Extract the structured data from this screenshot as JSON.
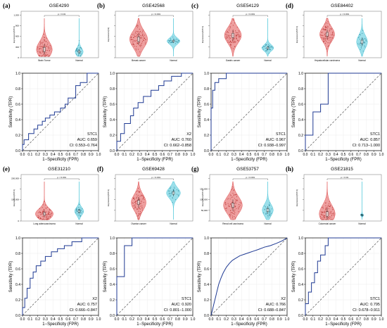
{
  "figure": {
    "panels": [
      {
        "tag": "(a)",
        "gse": "GSE4290",
        "violin": {
          "ylabel": "Expression(STC1)",
          "yticks": [
            "0",
            "300",
            "600",
            "900",
            "1,200"
          ],
          "groups": [
            "Brain Tumor",
            "Normal"
          ],
          "p": "p < 0.01",
          "colors": [
            "#e05050",
            "#49c5d8"
          ]
        },
        "roc": {
          "label": "STC1",
          "auc": "AUC: 0.659",
          "ci": "CI: 0.553−0.764"
        }
      },
      {
        "tag": "(b)",
        "gse": "GSE42568",
        "violin": {
          "ylabel": "Expression(X2)",
          "yticks": [
            "",
            "",
            "",
            "",
            ""
          ],
          "groups": [
            "Breast cancer",
            "Normal"
          ],
          "p": "p < 0.001",
          "colors": [
            "#e05050",
            "#49c5d8"
          ]
        },
        "roc": {
          "label": "X2",
          "auc": "AUC: 0.760",
          "ci": "CI: 0.662−0.858"
        }
      },
      {
        "tag": "(c)",
        "gse": "GSE54129",
        "violin": {
          "ylabel": "Expression(STC1)",
          "yticks": [
            "",
            "",
            "",
            "",
            ""
          ],
          "groups": [
            "Gastric cancer",
            "Normal"
          ],
          "p": "p < 0.001",
          "colors": [
            "#e05050",
            "#49c5d8"
          ]
        },
        "roc": {
          "label": "STC1",
          "auc": "AUC: 0.967",
          "ci": "CI: 0.938−0.997"
        }
      },
      {
        "tag": "(d)",
        "gse": "GSE84402",
        "violin": {
          "ylabel": "Expression(STC1)",
          "yticks": [
            "",
            "",
            "",
            "",
            ""
          ],
          "groups": [
            "Hepatocellular carcinoma",
            "Normal"
          ],
          "p": "p < 0.001",
          "colors": [
            "#e05050",
            "#49c5d8"
          ]
        },
        "roc": {
          "label": "STC1",
          "auc": "AUC: 0.857",
          "ci": "CI: 0.713−1.000"
        }
      },
      {
        "tag": "(e)",
        "gse": "GSE31210",
        "violin": {
          "ylabel": "Expression(STC1)",
          "yticks": [
            "0",
            "",
            "100,000",
            "",
            "200,000"
          ],
          "groups": [
            "Lung adenocarcinoma",
            "Normal"
          ],
          "p": "p < 0.001",
          "colors": [
            "#e05050",
            "#49c5d8"
          ]
        },
        "roc": {
          "label": "X2",
          "auc": "AUC: 0.757",
          "ci": "CI: 0.666−0.847"
        }
      },
      {
        "tag": "(f)",
        "gse": "GSE69428",
        "violin": {
          "ylabel": "Expression(STC1)",
          "yticks": [
            "",
            "",
            "",
            "",
            ""
          ],
          "groups": [
            "Ovarian cancer",
            "Normal"
          ],
          "p": "p < 0.001",
          "colors": [
            "#e05050",
            "#49c5d8"
          ]
        },
        "roc": {
          "label": "STC1",
          "auc": "AUC: 0.920",
          "ci": "CI: 0.801−1.000"
        }
      },
      {
        "tag": "(g)",
        "gse": "GSE53757",
        "violin": {
          "ylabel": "Expression(STC1)",
          "yticks": [
            "",
            "50,000",
            "100,000",
            "150,000",
            ""
          ],
          "groups": [
            "Renal cell carcinoma",
            "Normal"
          ],
          "p": "p < 0.001",
          "colors": [
            "#e05050",
            "#49c5d8"
          ]
        },
        "roc": {
          "label": "X2",
          "auc": "AUC: 0.766",
          "ci": "CI: 0.688−0.847"
        }
      },
      {
        "tag": "(h)",
        "gse": "GSE21815",
        "violin": {
          "ylabel": "Expression(STC1)",
          "yticks": [
            "",
            "",
            "",
            "",
            ""
          ],
          "groups": [
            "Colorectal cancer",
            "Normal"
          ],
          "p": "p < 0.01",
          "colors": [
            "#e05050",
            "#49c5d8"
          ]
        },
        "roc": {
          "label": "STC1",
          "auc": "AUC: 0.795",
          "ci": "CI: 0.678−0.911"
        }
      }
    ]
  },
  "chart_data": [
    {
      "type": "line",
      "panel": "(a)",
      "xlabel": "1−Specificity (FPR)",
      "ylabel": "Sensitivity (TPR)",
      "xlim": [
        0,
        1
      ],
      "ylim": [
        0,
        1
      ],
      "xticks": [
        "0.0",
        "0.1",
        "0.2",
        "0.3",
        "0.4",
        "0.5",
        "0.6",
        "0.7",
        "0.8",
        "0.9",
        "1.0"
      ],
      "yticks": [
        "0.0",
        "0.2",
        "0.4",
        "0.6",
        "0.8",
        "1.0"
      ],
      "series": [
        {
          "name": "STC1",
          "x": [
            0,
            0,
            0.02,
            0.02,
            0.08,
            0.08,
            0.15,
            0.15,
            0.2,
            0.2,
            0.26,
            0.26,
            0.3,
            0.3,
            0.36,
            0.36,
            0.42,
            0.42,
            0.5,
            0.5,
            0.56,
            0.56,
            0.6,
            0.6,
            0.7,
            0.7,
            0.76,
            0.76,
            0.85,
            0.85,
            1
          ],
          "y": [
            0,
            0.08,
            0.08,
            0.14,
            0.14,
            0.22,
            0.22,
            0.28,
            0.28,
            0.33,
            0.33,
            0.38,
            0.38,
            0.42,
            0.42,
            0.46,
            0.46,
            0.5,
            0.5,
            0.55,
            0.55,
            0.6,
            0.6,
            0.68,
            0.68,
            0.84,
            0.84,
            0.88,
            0.88,
            1,
            1
          ]
        }
      ]
    },
    {
      "type": "line",
      "panel": "(b)",
      "xlabel": "1−Specificity (FPR)",
      "ylabel": "Sensitivity (TPR)",
      "xlim": [
        0,
        1
      ],
      "ylim": [
        0,
        1
      ],
      "xticks": [
        "0.0",
        "0.1",
        "0.2",
        "0.3",
        "0.4",
        "0.5",
        "0.6",
        "0.7",
        "0.8",
        "0.9",
        "1.0"
      ],
      "yticks": [
        "0.0",
        "0.2",
        "0.4",
        "0.6",
        "0.8",
        "1.0"
      ],
      "series": [
        {
          "name": "X2",
          "x": [
            0,
            0,
            0.05,
            0.05,
            0.1,
            0.1,
            0.18,
            0.18,
            0.22,
            0.22,
            0.28,
            0.28,
            0.35,
            0.35,
            0.45,
            0.45,
            0.55,
            0.55,
            0.62,
            0.62,
            0.72,
            0.72,
            0.85,
            0.85,
            1
          ],
          "y": [
            0,
            0.12,
            0.12,
            0.22,
            0.22,
            0.35,
            0.35,
            0.45,
            0.45,
            0.55,
            0.55,
            0.62,
            0.62,
            0.7,
            0.7,
            0.78,
            0.78,
            0.84,
            0.84,
            0.9,
            0.9,
            0.96,
            0.96,
            1,
            1
          ]
        }
      ]
    },
    {
      "type": "line",
      "panel": "(c)",
      "xlabel": "1−Specificity (FPR)",
      "ylabel": "Sensitivity (TPR)",
      "xlim": [
        0,
        1
      ],
      "ylim": [
        0,
        1
      ],
      "xticks": [
        "0.0",
        "0.1",
        "0.2",
        "0.3",
        "0.4",
        "0.5",
        "0.6",
        "0.7",
        "0.8",
        "0.9",
        "1.0"
      ],
      "yticks": [
        "0.0",
        "0.2",
        "0.4",
        "0.6",
        "0.8",
        "1.0"
      ],
      "series": [
        {
          "name": "STC1",
          "x": [
            0,
            0,
            0.02,
            0.02,
            0.05,
            0.05,
            0.1,
            0.1,
            0.2,
            0.2,
            1
          ],
          "y": [
            0,
            0.55,
            0.55,
            0.78,
            0.78,
            0.88,
            0.88,
            0.93,
            0.93,
            1,
            1
          ]
        }
      ]
    },
    {
      "type": "line",
      "panel": "(d)",
      "xlabel": "1−Specificity (FPR)",
      "ylabel": "Sensitivity (TPR)",
      "xlim": [
        0,
        1
      ],
      "ylim": [
        0,
        1
      ],
      "xticks": [
        "0.0",
        "0.1",
        "0.2",
        "0.3",
        "0.4",
        "0.5",
        "0.6",
        "0.7",
        "0.8",
        "0.9",
        "1.0"
      ],
      "yticks": [
        "0.0",
        "0.2",
        "0.4",
        "0.6",
        "0.8",
        "1.0"
      ],
      "series": [
        {
          "name": "STC1",
          "x": [
            0,
            0,
            0.1,
            0.1,
            0.2,
            0.2,
            0.3,
            0.3,
            1
          ],
          "y": [
            0,
            0.2,
            0.2,
            0.5,
            0.5,
            0.6,
            0.6,
            1,
            1
          ]
        }
      ]
    },
    {
      "type": "line",
      "panel": "(e)",
      "xlabel": "1−Specificity (FPR)",
      "ylabel": "Sensitivity (TPR)",
      "xlim": [
        0,
        1
      ],
      "ylim": [
        0,
        1
      ],
      "xticks": [
        "0.0",
        "0.1",
        "0.2",
        "0.3",
        "0.4",
        "0.5",
        "0.6",
        "0.7",
        "0.8",
        "0.9",
        "1.0"
      ],
      "yticks": [
        "0.0",
        "0.2",
        "0.4",
        "0.6",
        "0.8",
        "1.0"
      ],
      "series": [
        {
          "name": "X2",
          "x": [
            0,
            0,
            0.03,
            0.03,
            0.06,
            0.06,
            0.1,
            0.1,
            0.14,
            0.14,
            0.18,
            0.18,
            0.24,
            0.24,
            0.3,
            0.3,
            0.38,
            0.38,
            0.46,
            0.46,
            0.55,
            0.55,
            0.65,
            0.65,
            0.78,
            0.78,
            1
          ],
          "y": [
            0,
            0.1,
            0.1,
            0.22,
            0.22,
            0.35,
            0.35,
            0.48,
            0.48,
            0.56,
            0.56,
            0.64,
            0.64,
            0.7,
            0.7,
            0.76,
            0.76,
            0.82,
            0.82,
            0.86,
            0.86,
            0.9,
            0.9,
            0.95,
            0.95,
            1,
            1
          ]
        }
      ]
    },
    {
      "type": "line",
      "panel": "(f)",
      "xlabel": "1−Specificity (FPR)",
      "ylabel": "Sensitivity (TPR)",
      "xlim": [
        0,
        1
      ],
      "ylim": [
        0,
        1
      ],
      "xticks": [
        "0.0",
        "0.1",
        "0.2",
        "0.3",
        "0.4",
        "0.5",
        "0.6",
        "0.7",
        "0.8",
        "0.9",
        "1.0"
      ],
      "yticks": [
        "0.0",
        "0.2",
        "0.4",
        "0.6",
        "0.8",
        "1.0"
      ],
      "series": [
        {
          "name": "STC1",
          "x": [
            0,
            0,
            0.1,
            0.1,
            0.2,
            0.2,
            1
          ],
          "y": [
            0,
            0.5,
            0.5,
            0.9,
            0.9,
            1,
            1
          ]
        }
      ]
    },
    {
      "type": "line",
      "panel": "(g)",
      "xlabel": "1−Specificity (FPR)",
      "ylabel": "Sensitivity (TPR)",
      "xlim": [
        0,
        1
      ],
      "ylim": [
        0,
        1
      ],
      "xticks": [
        "0.0",
        "0.1",
        "0.2",
        "0.3",
        "0.4",
        "0.5",
        "0.6",
        "0.7",
        "0.8",
        "0.9",
        "1.0"
      ],
      "yticks": [
        "0.0",
        "0.2",
        "0.4",
        "0.6",
        "0.8",
        "1.0"
      ],
      "series": [
        {
          "name": "X2",
          "x": [
            0,
            0.02,
            0.04,
            0.06,
            0.08,
            0.1,
            0.13,
            0.16,
            0.2,
            0.24,
            0.28,
            0.33,
            0.38,
            0.44,
            0.5,
            0.56,
            0.62,
            0.7,
            0.78,
            0.86,
            0.93,
            1
          ],
          "y": [
            0,
            0.08,
            0.16,
            0.24,
            0.32,
            0.4,
            0.48,
            0.55,
            0.62,
            0.67,
            0.71,
            0.74,
            0.77,
            0.79,
            0.81,
            0.83,
            0.85,
            0.88,
            0.9,
            0.93,
            0.96,
            1
          ]
        }
      ]
    },
    {
      "type": "line",
      "panel": "(h)",
      "xlabel": "1−Specificity (FPR)",
      "ylabel": "Sensitivity (TPR)",
      "xlim": [
        0,
        1
      ],
      "ylim": [
        0,
        1
      ],
      "xticks": [
        "0.0",
        "0.1",
        "0.2",
        "0.3",
        "0.4",
        "0.5",
        "0.6",
        "0.7",
        "0.8",
        "0.9",
        "1.0"
      ],
      "yticks": [
        "0.0",
        "0.2",
        "0.4",
        "0.6",
        "0.8",
        "1.0"
      ],
      "series": [
        {
          "name": "STC1",
          "x": [
            0,
            0,
            0.04,
            0.04,
            0.08,
            0.08,
            0.12,
            0.12,
            0.16,
            0.16,
            0.2,
            0.2,
            0.26,
            0.26,
            0.3,
            0.3,
            1
          ],
          "y": [
            0,
            0.15,
            0.15,
            0.3,
            0.3,
            0.42,
            0.42,
            0.55,
            0.55,
            0.7,
            0.7,
            0.78,
            0.78,
            0.9,
            0.9,
            1,
            1
          ]
        }
      ]
    }
  ]
}
